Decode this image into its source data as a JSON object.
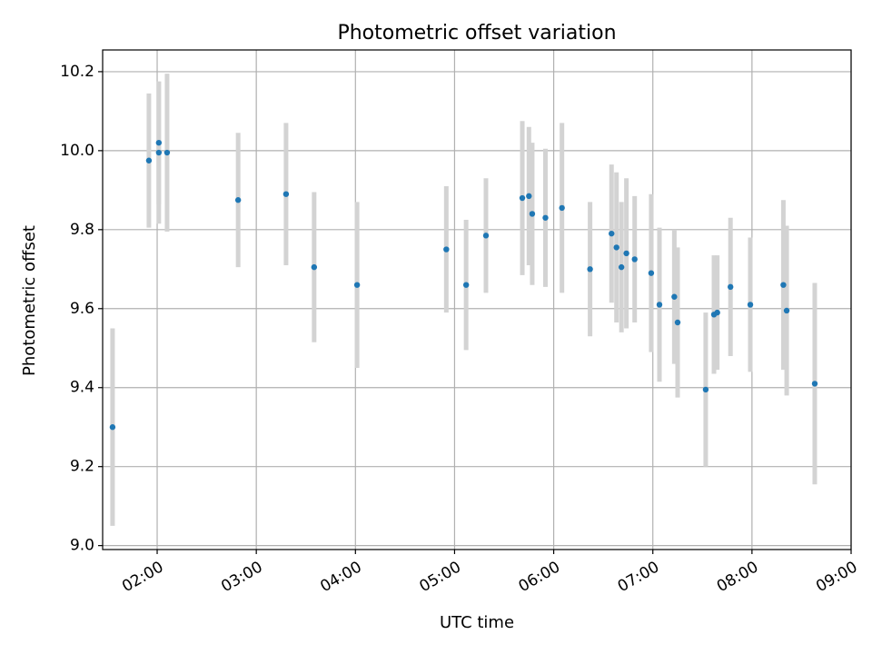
{
  "chart_data": {
    "type": "scatter",
    "title": "Photometric offset variation",
    "xlabel": "UTC time",
    "ylabel": "Photometric offset",
    "x_ticks": [
      "02:00",
      "03:00",
      "04:00",
      "05:00",
      "06:00",
      "07:00",
      "08:00",
      "09:00"
    ],
    "y_ticks": [
      "9.0",
      "9.2",
      "9.4",
      "9.6",
      "9.8",
      "10.0",
      "10.2"
    ],
    "xlim": [
      "01:27",
      "09:00"
    ],
    "ylim": [
      8.99,
      10.255
    ],
    "grid": true,
    "colors": {
      "point": "#1f77b4",
      "errorbar": "#d3d3d3",
      "grid": "#b0b0b0"
    },
    "series": [
      {
        "points": [
          {
            "x": "01:33",
            "y": 9.3,
            "err": 0.25
          },
          {
            "x": "01:55",
            "y": 9.975,
            "err": 0.17
          },
          {
            "x": "02:01",
            "y": 10.02,
            "err": 0.155
          },
          {
            "x": "02:01",
            "y": 9.995,
            "err": 0.18
          },
          {
            "x": "02:06",
            "y": 9.995,
            "err": 0.2
          },
          {
            "x": "02:49",
            "y": 9.875,
            "err": 0.17
          },
          {
            "x": "03:18",
            "y": 9.89,
            "err": 0.18
          },
          {
            "x": "03:35",
            "y": 9.705,
            "err": 0.19
          },
          {
            "x": "04:01",
            "y": 9.66,
            "err": 0.21
          },
          {
            "x": "04:55",
            "y": 9.75,
            "err": 0.16
          },
          {
            "x": "05:07",
            "y": 9.66,
            "err": 0.165
          },
          {
            "x": "05:19",
            "y": 9.785,
            "err": 0.145
          },
          {
            "x": "05:41",
            "y": 9.88,
            "err": 0.195
          },
          {
            "x": "05:45",
            "y": 9.885,
            "err": 0.175
          },
          {
            "x": "05:47",
            "y": 9.84,
            "err": 0.18
          },
          {
            "x": "05:55",
            "y": 9.83,
            "err": 0.175
          },
          {
            "x": "06:05",
            "y": 9.855,
            "err": 0.215
          },
          {
            "x": "06:22",
            "y": 9.7,
            "err": 0.17
          },
          {
            "x": "06:35",
            "y": 9.79,
            "err": 0.175
          },
          {
            "x": "06:38",
            "y": 9.755,
            "err": 0.19
          },
          {
            "x": "06:41",
            "y": 9.705,
            "err": 0.165
          },
          {
            "x": "06:44",
            "y": 9.74,
            "err": 0.19
          },
          {
            "x": "06:49",
            "y": 9.725,
            "err": 0.16
          },
          {
            "x": "06:59",
            "y": 9.69,
            "err": 0.2
          },
          {
            "x": "07:04",
            "y": 9.61,
            "err": 0.195
          },
          {
            "x": "07:13",
            "y": 9.63,
            "err": 0.17
          },
          {
            "x": "07:15",
            "y": 9.565,
            "err": 0.19
          },
          {
            "x": "07:32",
            "y": 9.395,
            "err": 0.195
          },
          {
            "x": "07:37",
            "y": 9.585,
            "err": 0.15
          },
          {
            "x": "07:39",
            "y": 9.59,
            "err": 0.145
          },
          {
            "x": "07:47",
            "y": 9.655,
            "err": 0.175
          },
          {
            "x": "07:59",
            "y": 9.61,
            "err": 0.17
          },
          {
            "x": "08:19",
            "y": 9.66,
            "err": 0.215
          },
          {
            "x": "08:21",
            "y": 9.595,
            "err": 0.215
          },
          {
            "x": "08:38",
            "y": 9.41,
            "err": 0.255
          }
        ]
      }
    ]
  }
}
